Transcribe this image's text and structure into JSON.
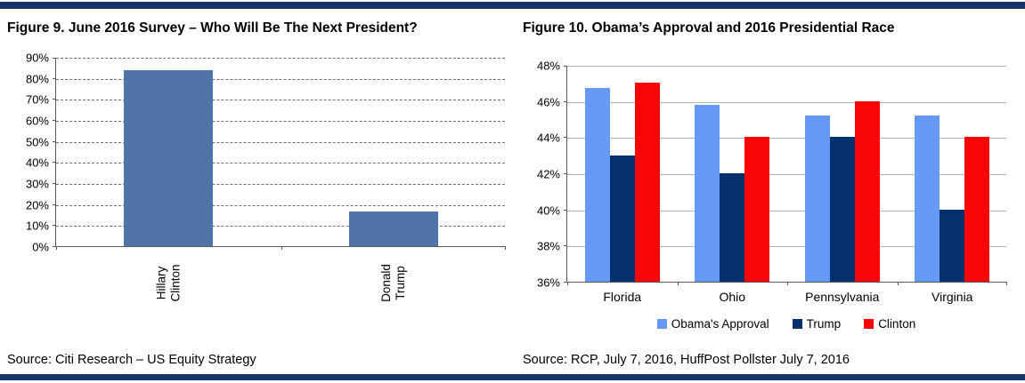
{
  "page": {
    "rule_color": "#17356B",
    "background": "#FFFFFF",
    "axis_color": "#595959"
  },
  "chart_data": [
    {
      "type": "bar",
      "title": "Figure 9. June 2016 Survey – Who Will Be The Next President?",
      "source": "Source: Citi Research – US Equity Strategy",
      "categories": [
        "Hillary\nClinton",
        "Donald\nTrump"
      ],
      "values": [
        83.5,
        16.5
      ],
      "bar_color": "#4E74A8",
      "ylim": [
        0,
        90
      ],
      "ytick_step": 10,
      "ytick_suffix": "%",
      "grid": "dashed",
      "legend": "none"
    },
    {
      "type": "grouped-bar",
      "title": "Figure 10. Obama’s Approval and 2016 Presidential Race",
      "source": "Source: RCP, July 7, 2016, HuffPost Pollster July 7, 2016",
      "categories": [
        "Florida",
        "Ohio",
        "Pennsylvania",
        "Virginia"
      ],
      "series": [
        {
          "name": "Obama's Approval",
          "color": "#6699F5",
          "values": [
            46.7,
            45.8,
            45.2,
            45.2
          ]
        },
        {
          "name": "Trump",
          "color": "#04316E",
          "values": [
            43,
            42,
            44,
            40
          ]
        },
        {
          "name": "Clinton",
          "color": "#FA0505",
          "values": [
            47,
            44,
            46,
            44
          ]
        }
      ],
      "ylim": [
        36,
        48
      ],
      "ytick_step": 2,
      "ytick_suffix": "%",
      "grid": "solid",
      "legend_position": "bottom"
    }
  ]
}
